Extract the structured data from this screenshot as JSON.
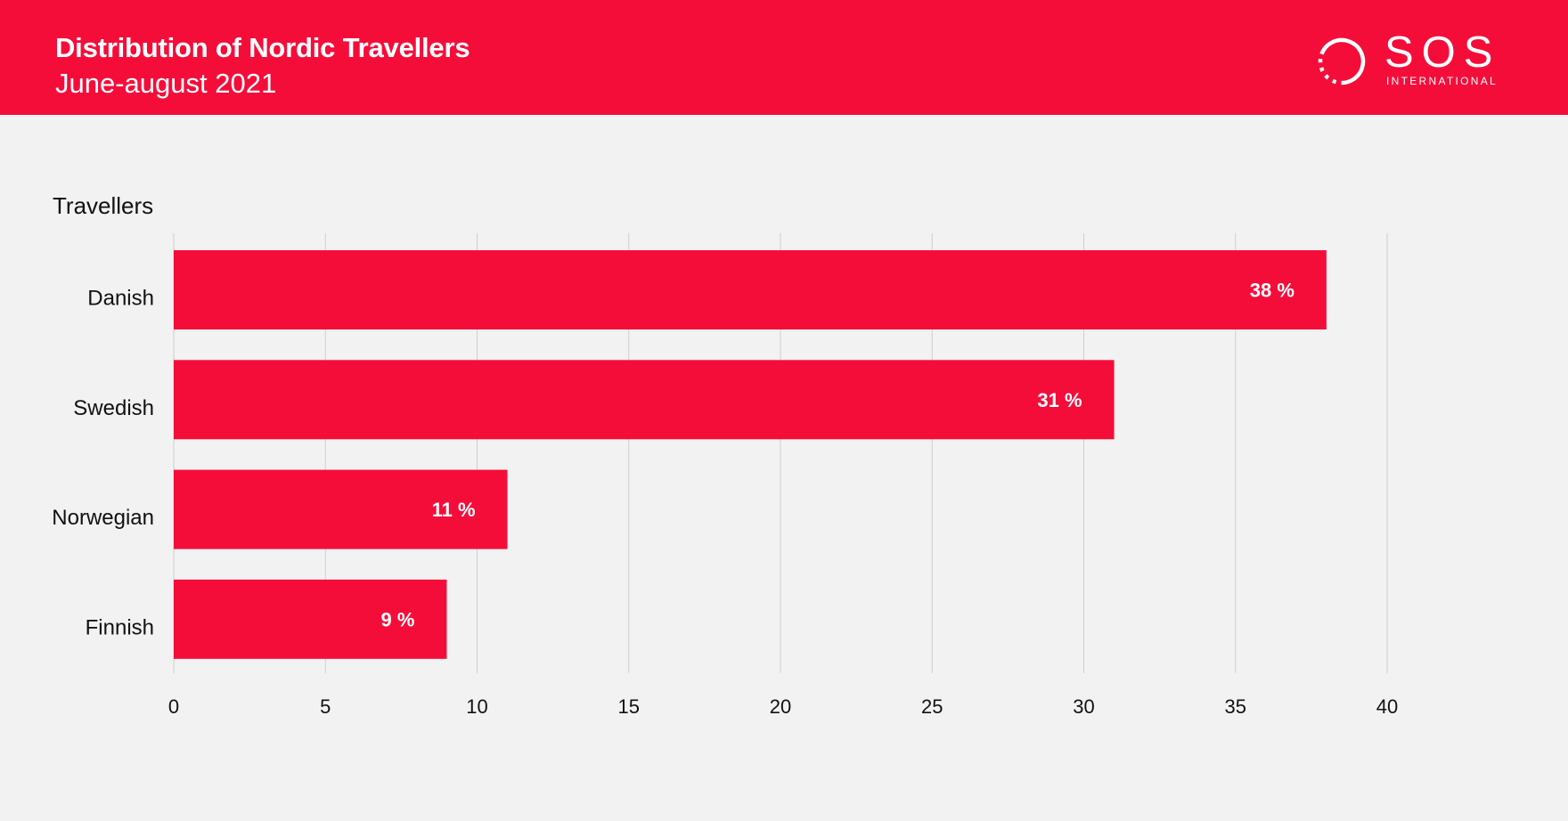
{
  "header": {
    "title": "Distribution of Nordic Travellers",
    "subtitle": "June-august 2021",
    "background_color": "#f50d3a"
  },
  "logo": {
    "name": "SOS International logo",
    "word": "SOS",
    "sub": "INTERNATIONAL"
  },
  "colors": {
    "bar": "#f50d3a",
    "background": "#f2f2f2",
    "grid": "#cfcfcf",
    "text": "#111111"
  },
  "chart_data": {
    "type": "bar",
    "orientation": "horizontal",
    "title": "",
    "xlabel": "",
    "ylabel": "Travellers",
    "categories": [
      "Danish",
      "Swedish",
      "Norwegian",
      "Finnish"
    ],
    "values": [
      38,
      31,
      11,
      9
    ],
    "data_labels": [
      "38 %",
      "31 %",
      "11 %",
      "9 %"
    ],
    "xlim": [
      0,
      40
    ],
    "x_ticks": [
      0,
      5,
      10,
      15,
      20,
      25,
      30,
      35,
      40
    ],
    "grid": "vertical",
    "legend": "none"
  }
}
